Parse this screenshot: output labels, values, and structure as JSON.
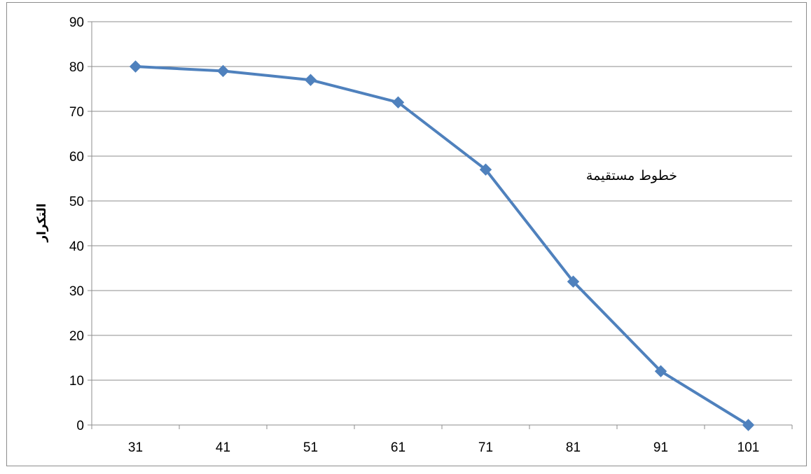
{
  "chart_data": {
    "type": "line",
    "title": "",
    "xlabel": "",
    "ylabel": "التكرار",
    "categories": [
      "31",
      "41",
      "51",
      "61",
      "71",
      "81",
      "91",
      "101"
    ],
    "series": [
      {
        "values": [
          80,
          79,
          77,
          72,
          57,
          32,
          12,
          0
        ],
        "color": "#4F81BD",
        "marker": "diamond"
      }
    ],
    "ylim": [
      0,
      90
    ],
    "yticks": [
      0,
      10,
      20,
      30,
      40,
      50,
      60,
      70,
      80,
      90
    ],
    "grid": "horizontal",
    "legend": "none",
    "annotations": [
      {
        "text": "خطوط مستقيمة"
      }
    ]
  }
}
